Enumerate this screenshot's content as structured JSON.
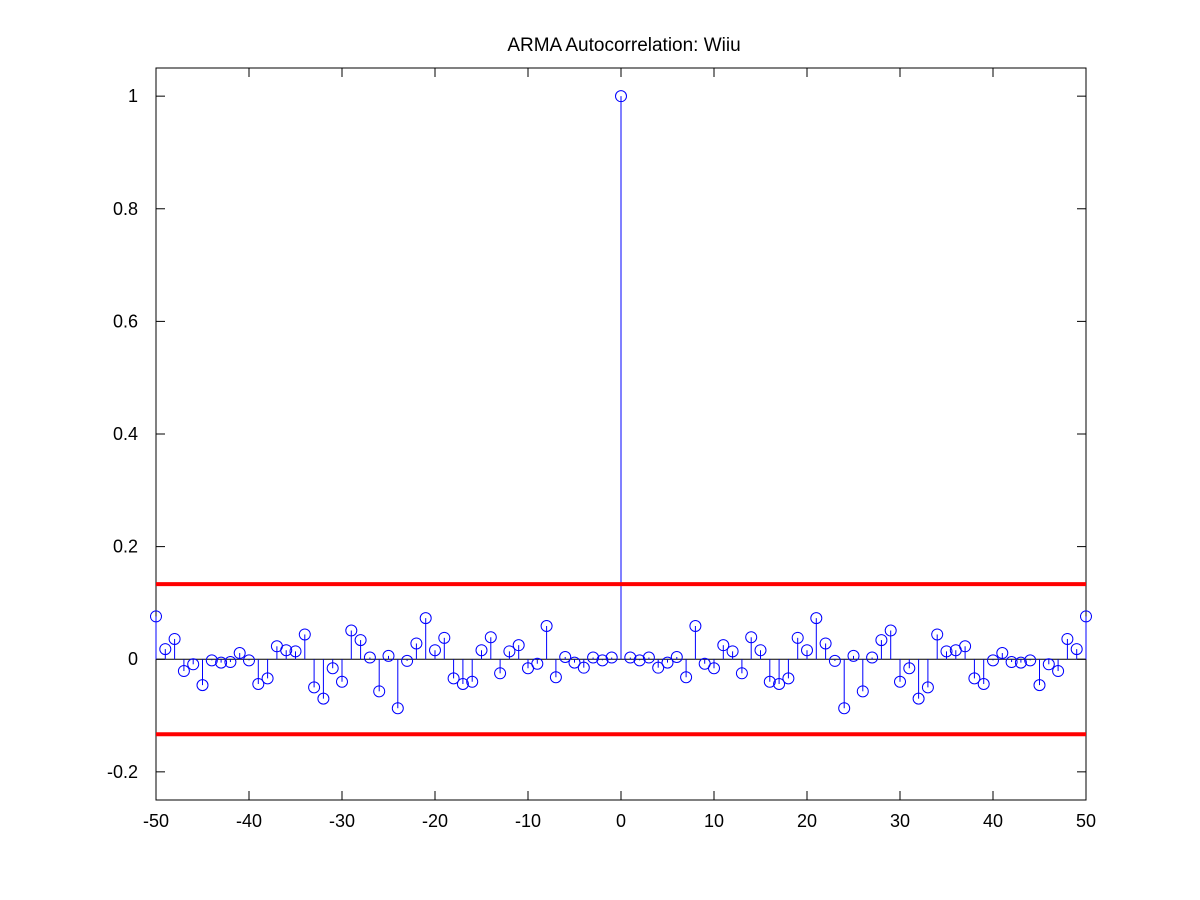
{
  "figure": {
    "background_color": "#ffffff"
  },
  "chart_data": {
    "type": "stem",
    "title": "ARMA Autocorrelation: Wiiu",
    "xlabel": "",
    "ylabel": "",
    "xlim": [
      -50,
      50
    ],
    "ylim": [
      -0.25,
      1.05
    ],
    "xticks": [
      -50,
      -40,
      -30,
      -20,
      -10,
      0,
      10,
      20,
      30,
      40,
      50
    ],
    "xtick_labels": [
      "-50",
      "-40",
      "-30",
      "-20",
      "-10",
      "0",
      "10",
      "20",
      "30",
      "40",
      "50"
    ],
    "yticks": [
      -0.2,
      0,
      0.2,
      0.4,
      0.6,
      0.8,
      1
    ],
    "ytick_labels": [
      "-0.2",
      "0",
      "0.2",
      "0.4",
      "0.6",
      "0.8",
      "1"
    ],
    "grid": false,
    "stem_color": "#0000ff",
    "marker": "circle-open",
    "series": [
      {
        "lags": [
          -50,
          -49,
          -48,
          -47,
          -46,
          -45,
          -44,
          -43,
          -42,
          -41,
          -40,
          -39,
          -38,
          -37,
          -36,
          -35,
          -34,
          -33,
          -32,
          -31,
          -30,
          -29,
          -28,
          -27,
          -26,
          -25,
          -24,
          -23,
          -22,
          -21,
          -20,
          -19,
          -18,
          -17,
          -16,
          -15,
          -14,
          -13,
          -12,
          -11,
          -10,
          -9,
          -8,
          -7,
          -6,
          -5,
          -4,
          -3,
          -2,
          -1,
          0,
          1,
          2,
          3,
          4,
          5,
          6,
          7,
          8,
          9,
          10,
          11,
          12,
          13,
          14,
          15,
          16,
          17,
          18,
          19,
          20,
          21,
          22,
          23,
          24,
          25,
          26,
          27,
          28,
          29,
          30,
          31,
          32,
          33,
          34,
          35,
          36,
          37,
          38,
          39,
          40,
          41,
          42,
          43,
          44,
          45,
          46,
          47,
          48,
          49,
          50
        ],
        "values": [
          0.076,
          0.018,
          0.036,
          -0.021,
          -0.009,
          -0.046,
          -0.002,
          -0.006,
          -0.005,
          0.011,
          -0.002,
          -0.044,
          -0.034,
          0.023,
          0.016,
          0.014,
          0.044,
          -0.05,
          -0.07,
          -0.016,
          -0.04,
          0.051,
          0.034,
          0.003,
          -0.057,
          0.006,
          -0.087,
          -0.003,
          0.028,
          0.073,
          0.016,
          0.038,
          -0.034,
          -0.044,
          -0.04,
          0.016,
          0.039,
          -0.025,
          0.014,
          0.025,
          -0.016,
          -0.008,
          0.059,
          -0.032,
          0.004,
          -0.006,
          -0.015,
          0.003,
          -0.002,
          0.003,
          1.0,
          0.003,
          -0.002,
          0.003,
          -0.015,
          -0.006,
          0.004,
          -0.032,
          0.059,
          -0.008,
          -0.016,
          0.025,
          0.014,
          -0.025,
          0.039,
          0.016,
          -0.04,
          -0.044,
          -0.034,
          0.038,
          0.016,
          0.073,
          0.028,
          -0.003,
          -0.087,
          0.006,
          -0.057,
          0.003,
          0.034,
          0.051,
          -0.04,
          -0.016,
          -0.07,
          -0.05,
          0.044,
          0.014,
          0.016,
          0.023,
          -0.034,
          -0.044,
          -0.002,
          0.011,
          -0.005,
          -0.006,
          -0.002,
          -0.046,
          -0.009,
          -0.021,
          0.036,
          0.018,
          0.076
        ]
      }
    ],
    "confidence_bounds": {
      "upper": 0.1333,
      "lower": -0.1333,
      "color": "#ff0000"
    }
  }
}
